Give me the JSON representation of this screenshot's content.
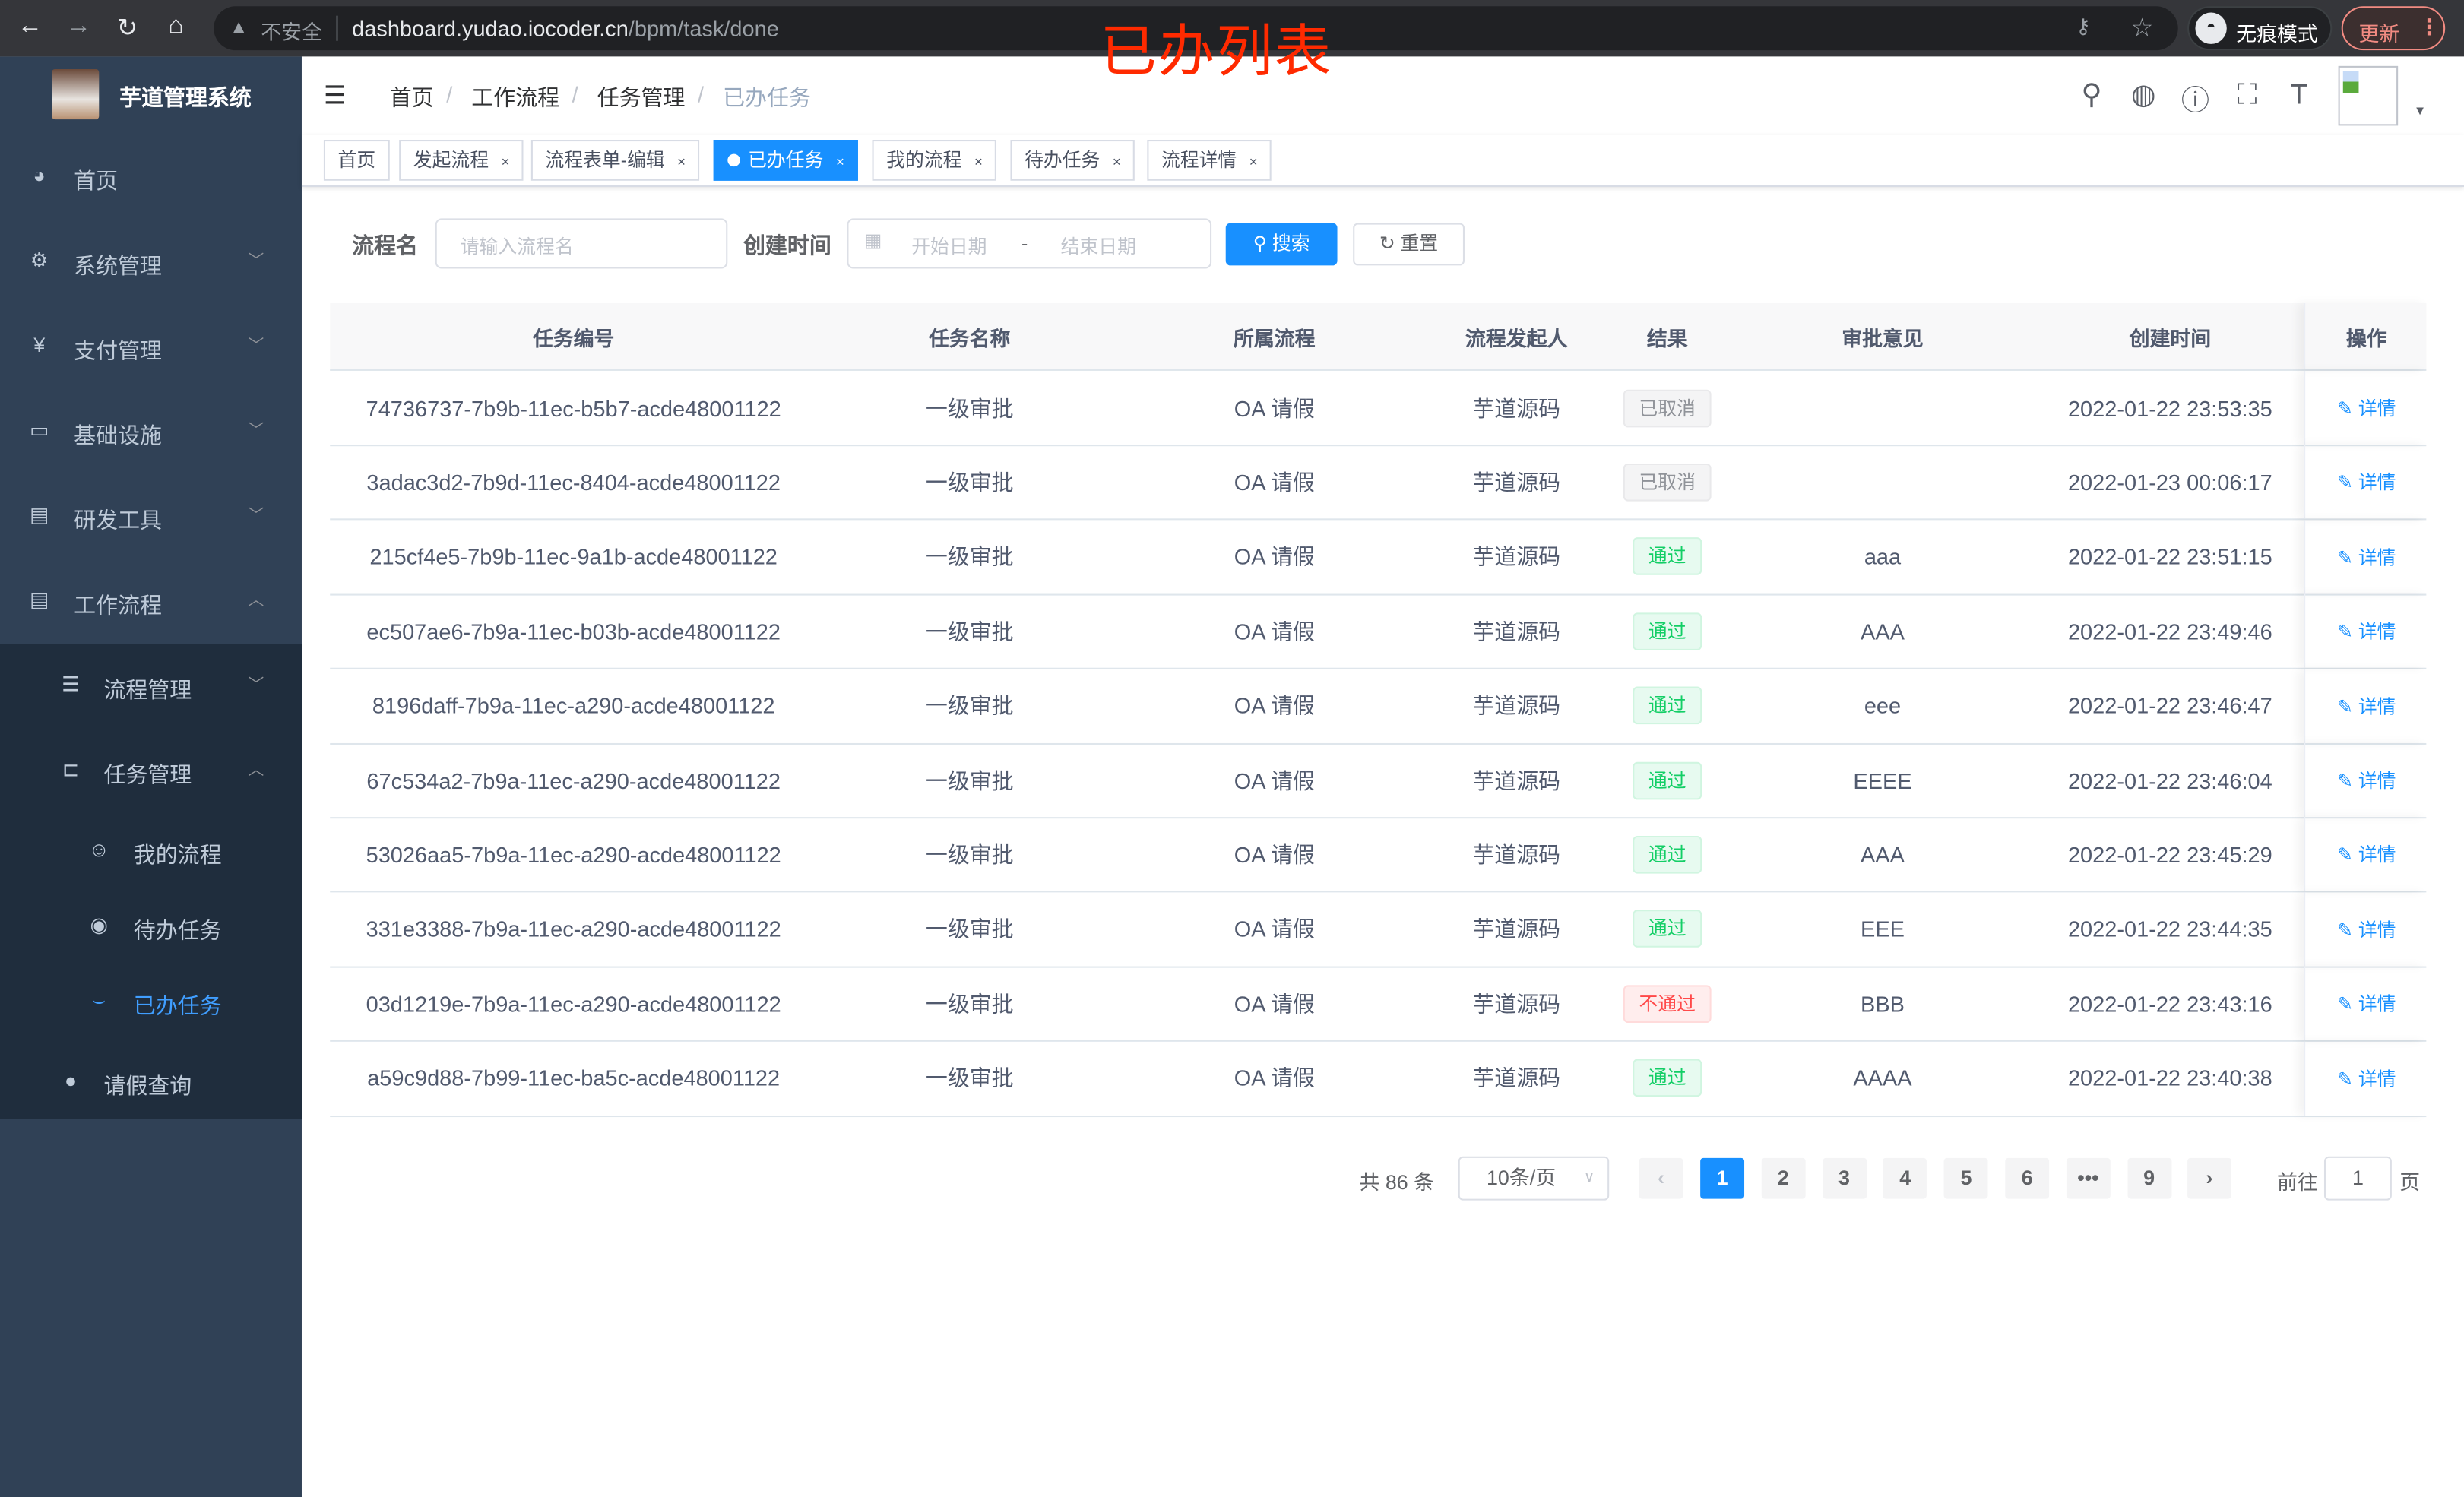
{
  "browser": {
    "insecure_label": "不安全",
    "url_host": "dashboard.yudao.iocoder.cn",
    "url_path": "/bpm/task/done",
    "incognito_label": "无痕模式",
    "update_label": "更新"
  },
  "annotation": "已办列表",
  "sidebar": {
    "brand": "芋道管理系统",
    "items": [
      {
        "label": "首页",
        "icon": "dashboard-icon",
        "glyph": "◕",
        "level": 1,
        "chevron": ""
      },
      {
        "label": "系统管理",
        "icon": "gear-icon",
        "glyph": "⚙",
        "level": 1,
        "chevron": "﹀"
      },
      {
        "label": "支付管理",
        "icon": "yen-icon",
        "glyph": "¥",
        "level": 1,
        "chevron": "﹀"
      },
      {
        "label": "基础设施",
        "icon": "monitor-icon",
        "glyph": "▭",
        "level": 1,
        "chevron": "﹀"
      },
      {
        "label": "研发工具",
        "icon": "toolbox-icon",
        "glyph": "▤",
        "level": 1,
        "chevron": "﹀"
      },
      {
        "label": "工作流程",
        "icon": "toolbox-icon",
        "glyph": "▤",
        "level": 1,
        "chevron": "︿"
      },
      {
        "label": "流程管理",
        "icon": "list-icon",
        "glyph": "☰",
        "level": 2,
        "chevron": "﹀"
      },
      {
        "label": "任务管理",
        "icon": "tree-icon",
        "glyph": "⊏",
        "level": 2,
        "chevron": "︿"
      },
      {
        "label": "我的流程",
        "icon": "people-icon",
        "glyph": "☺",
        "level": 3,
        "chevron": ""
      },
      {
        "label": "待办任务",
        "icon": "eye-icon",
        "glyph": "◉",
        "level": 3,
        "chevron": ""
      },
      {
        "label": "已办任务",
        "icon": "eye-closed-icon",
        "glyph": "⌣",
        "level": 3,
        "chevron": "",
        "active": true
      },
      {
        "label": "请假查询",
        "icon": "user-icon",
        "glyph": "●",
        "level": 2,
        "chevron": ""
      }
    ]
  },
  "breadcrumb": [
    "首页",
    "工作流程",
    "任务管理",
    "已办任务"
  ],
  "tags": [
    {
      "label": "首页",
      "closable": false
    },
    {
      "label": "发起流程",
      "closable": true
    },
    {
      "label": "流程表单-编辑",
      "closable": true
    },
    {
      "label": "已办任务",
      "closable": true,
      "active": true
    },
    {
      "label": "我的流程",
      "closable": true
    },
    {
      "label": "待办任务",
      "closable": true
    },
    {
      "label": "流程详情",
      "closable": true
    }
  ],
  "filter": {
    "name_label": "流程名",
    "name_placeholder": "请输入流程名",
    "time_label": "创建时间",
    "start_placeholder": "开始日期",
    "range_sep": "-",
    "end_placeholder": "结束日期",
    "search_label": "搜索",
    "reset_label": "重置"
  },
  "table": {
    "columns": [
      "任务编号",
      "任务名称",
      "所属流程",
      "流程发起人",
      "结果",
      "审批意见",
      "创建时间",
      "操作"
    ],
    "action_label": "详情",
    "rows": [
      {
        "id": "74736737-7b9b-11ec-b5b7-acde48001122",
        "name": "一级审批",
        "process": "OA 请假",
        "starter": "芋道源码",
        "result": "已取消",
        "result_type": "info",
        "comment": "",
        "time": "2022-01-22 23:53:35"
      },
      {
        "id": "3adac3d2-7b9d-11ec-8404-acde48001122",
        "name": "一级审批",
        "process": "OA 请假",
        "starter": "芋道源码",
        "result": "已取消",
        "result_type": "info",
        "comment": "",
        "time": "2022-01-23 00:06:17"
      },
      {
        "id": "215cf4e5-7b9b-11ec-9a1b-acde48001122",
        "name": "一级审批",
        "process": "OA 请假",
        "starter": "芋道源码",
        "result": "通过",
        "result_type": "success",
        "comment": "aaa",
        "time": "2022-01-22 23:51:15"
      },
      {
        "id": "ec507ae6-7b9a-11ec-b03b-acde48001122",
        "name": "一级审批",
        "process": "OA 请假",
        "starter": "芋道源码",
        "result": "通过",
        "result_type": "success",
        "comment": "AAA",
        "time": "2022-01-22 23:49:46"
      },
      {
        "id": "8196daff-7b9a-11ec-a290-acde48001122",
        "name": "一级审批",
        "process": "OA 请假",
        "starter": "芋道源码",
        "result": "通过",
        "result_type": "success",
        "comment": "eee",
        "time": "2022-01-22 23:46:47"
      },
      {
        "id": "67c534a2-7b9a-11ec-a290-acde48001122",
        "name": "一级审批",
        "process": "OA 请假",
        "starter": "芋道源码",
        "result": "通过",
        "result_type": "success",
        "comment": "EEEE",
        "time": "2022-01-22 23:46:04"
      },
      {
        "id": "53026aa5-7b9a-11ec-a290-acde48001122",
        "name": "一级审批",
        "process": "OA 请假",
        "starter": "芋道源码",
        "result": "通过",
        "result_type": "success",
        "comment": "AAA",
        "time": "2022-01-22 23:45:29"
      },
      {
        "id": "331e3388-7b9a-11ec-a290-acde48001122",
        "name": "一级审批",
        "process": "OA 请假",
        "starter": "芋道源码",
        "result": "通过",
        "result_type": "success",
        "comment": "EEE",
        "time": "2022-01-22 23:44:35"
      },
      {
        "id": "03d1219e-7b9a-11ec-a290-acde48001122",
        "name": "一级审批",
        "process": "OA 请假",
        "starter": "芋道源码",
        "result": "不通过",
        "result_type": "danger",
        "comment": "BBB",
        "time": "2022-01-22 23:43:16"
      },
      {
        "id": "a59c9d88-7b99-11ec-ba5c-acde48001122",
        "name": "一级审批",
        "process": "OA 请假",
        "starter": "芋道源码",
        "result": "通过",
        "result_type": "success",
        "comment": "AAAA",
        "time": "2022-01-22 23:40:38"
      }
    ]
  },
  "pagination": {
    "total_text": "共 86 条",
    "page_size": "10条/页",
    "pages": [
      "1",
      "2",
      "3",
      "4",
      "5",
      "6",
      "•••",
      "9"
    ],
    "current": "1",
    "goto_prefix": "前往",
    "goto_value": "1",
    "goto_suffix": "页"
  },
  "colors": {
    "primary": "#1890ff",
    "sidebar": "#304156",
    "annotation": "#ff2a00"
  }
}
